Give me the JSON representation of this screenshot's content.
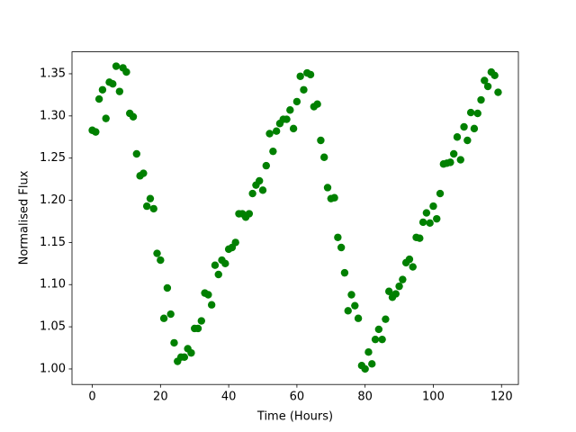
{
  "chart_data": {
    "type": "scatter",
    "xlabel": "Time (Hours)",
    "ylabel": "Normalised Flux",
    "color": "#008000",
    "x": [
      0,
      1,
      2,
      3,
      4,
      5,
      6,
      7,
      8,
      9,
      10,
      11,
      12,
      13,
      14,
      15,
      16,
      17,
      18,
      19,
      20,
      21,
      22,
      23,
      24,
      25,
      26,
      27,
      28,
      29,
      30,
      31,
      32,
      33,
      34,
      35,
      36,
      37,
      38,
      39,
      40,
      41,
      42,
      43,
      44,
      45,
      46,
      47,
      48,
      49,
      50,
      51,
      52,
      53,
      54,
      55,
      56,
      57,
      58,
      59,
      60,
      61,
      62,
      63,
      64,
      65,
      66,
      67,
      68,
      69,
      70,
      71,
      72,
      73,
      74,
      75,
      76,
      77,
      78,
      79,
      80,
      81,
      82,
      83,
      84,
      85,
      86,
      87,
      88,
      89,
      90,
      91,
      92,
      93,
      94,
      95,
      96,
      97,
      98,
      99,
      100,
      101,
      102,
      103,
      104,
      105,
      106,
      107,
      108,
      109,
      110,
      111,
      112,
      113,
      114,
      115,
      116,
      117,
      118,
      119
    ],
    "values": [
      1.283,
      1.281,
      1.32,
      1.331,
      1.297,
      1.34,
      1.338,
      1.359,
      1.329,
      1.357,
      1.352,
      1.303,
      1.299,
      1.255,
      1.229,
      1.232,
      1.193,
      1.202,
      1.19,
      1.137,
      1.129,
      1.06,
      1.096,
      1.065,
      1.031,
      1.009,
      1.014,
      1.014,
      1.024,
      1.019,
      1.048,
      1.048,
      1.057,
      1.09,
      1.088,
      1.076,
      1.123,
      1.112,
      1.129,
      1.125,
      1.142,
      1.144,
      1.15,
      1.184,
      1.184,
      1.18,
      1.184,
      1.208,
      1.218,
      1.223,
      1.212,
      1.241,
      1.279,
      1.258,
      1.282,
      1.291,
      1.296,
      1.296,
      1.307,
      1.285,
      1.317,
      1.347,
      1.331,
      1.351,
      1.349,
      1.311,
      1.314,
      1.271,
      1.251,
      1.215,
      1.202,
      1.203,
      1.156,
      1.144,
      1.114,
      1.069,
      1.088,
      1.075,
      1.06,
      1.004,
      1.0,
      1.02,
      1.006,
      1.035,
      1.047,
      1.035,
      1.059,
      1.092,
      1.085,
      1.089,
      1.098,
      1.106,
      1.126,
      1.13,
      1.121,
      1.156,
      1.155,
      1.174,
      1.185,
      1.173,
      1.193,
      1.178,
      1.208,
      1.243,
      1.244,
      1.245,
      1.255,
      1.275,
      1.248,
      1.287,
      1.271,
      1.304,
      1.285,
      1.303,
      1.319,
      1.342,
      1.335,
      1.352,
      1.348,
      1.328
    ],
    "xlim": [
      -5.95,
      124.95
    ],
    "ylim": [
      0.9816,
      1.376
    ],
    "xticks": [
      0,
      20,
      40,
      60,
      80,
      100,
      120
    ],
    "yticks": [
      {
        "value": 1,
        "label": "1.00"
      },
      1.05,
      {
        "value": 1.1,
        "label": "1.10"
      },
      1.15,
      {
        "value": 1.2,
        "label": "1.20"
      },
      1.25,
      {
        "value": 1.3,
        "label": "1.30"
      },
      1.35
    ]
  }
}
